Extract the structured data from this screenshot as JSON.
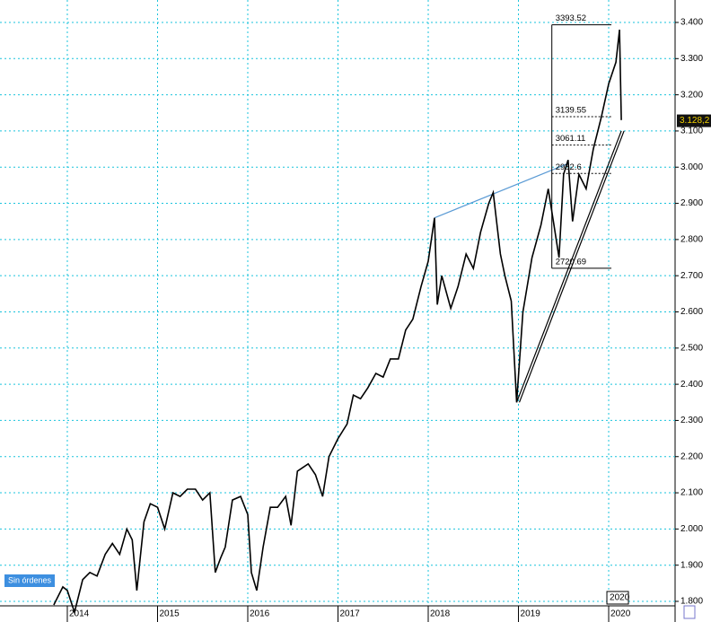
{
  "chart_data": {
    "type": "line",
    "x": [
      2013.85,
      2013.95,
      2014.0,
      2014.08,
      2014.17,
      2014.25,
      2014.33,
      2014.42,
      2014.5,
      2014.58,
      2014.66,
      2014.72,
      2014.77,
      2014.85,
      2014.92,
      2015.0,
      2015.08,
      2015.17,
      2015.25,
      2015.33,
      2015.42,
      2015.5,
      2015.58,
      2015.64,
      2015.7,
      2015.75,
      2015.83,
      2015.92,
      2016.0,
      2016.04,
      2016.1,
      2016.17,
      2016.25,
      2016.33,
      2016.42,
      2016.48,
      2016.55,
      2016.67,
      2016.75,
      2016.83,
      2016.9,
      2017.0,
      2017.1,
      2017.17,
      2017.25,
      2017.33,
      2017.42,
      2017.5,
      2017.58,
      2017.67,
      2017.75,
      2017.83,
      2017.92,
      2018.0,
      2018.07,
      2018.1,
      2018.15,
      2018.25,
      2018.33,
      2018.42,
      2018.5,
      2018.58,
      2018.67,
      2018.72,
      2018.8,
      2018.85,
      2018.92,
      2018.98,
      2019.05,
      2019.15,
      2019.25,
      2019.33,
      2019.4,
      2019.45,
      2019.5,
      2019.55,
      2019.6,
      2019.67,
      2019.75,
      2019.83,
      2019.92,
      2020.0,
      2020.08,
      2020.12,
      2020.14
    ],
    "values": [
      1790,
      1840,
      1830,
      1770,
      1860,
      1880,
      1870,
      1930,
      1960,
      1930,
      2000,
      1970,
      1830,
      2020,
      2070,
      2060,
      2000,
      2100,
      2090,
      2110,
      2110,
      2080,
      2100,
      1880,
      1920,
      1950,
      2080,
      2090,
      2040,
      1880,
      1830,
      1950,
      2060,
      2060,
      2090,
      2010,
      2160,
      2180,
      2150,
      2090,
      2200,
      2250,
      2290,
      2370,
      2360,
      2390,
      2430,
      2420,
      2470,
      2470,
      2550,
      2580,
      2670,
      2740,
      2860,
      2620,
      2700,
      2610,
      2670,
      2760,
      2720,
      2820,
      2900,
      2930,
      2760,
      2700,
      2630,
      2350,
      2600,
      2750,
      2840,
      2940,
      2830,
      2750,
      2980,
      3020,
      2850,
      2980,
      2940,
      3050,
      3140,
      3230,
      3290,
      3380,
      3130
    ],
    "color": "#000000",
    "xlim": [
      2013.254,
      2020.736
    ],
    "ylim": [
      1787.6,
      3462
    ],
    "xticks": [
      2014,
      2015,
      2016,
      2017,
      2018,
      2019,
      2020
    ],
    "yticks": [
      {
        "value": 1800,
        "label": "1.800"
      },
      {
        "value": 1900,
        "label": "1.900"
      },
      {
        "value": 2000,
        "label": "2.000"
      },
      {
        "value": 2100,
        "label": "2.100"
      },
      {
        "value": 2200,
        "label": "2.200"
      },
      {
        "value": 2300,
        "label": "2.300"
      },
      {
        "value": 2400,
        "label": "2.400"
      },
      {
        "value": 2500,
        "label": "2.500"
      },
      {
        "value": 2600,
        "label": "2.600"
      },
      {
        "value": 2700,
        "label": "2.700"
      },
      {
        "value": 2800,
        "label": "2.800"
      },
      {
        "value": 2900,
        "label": "2.900"
      },
      {
        "value": 3000,
        "label": "3.000"
      },
      {
        "value": 3100,
        "label": "3.100"
      },
      {
        "value": 3200,
        "label": "3.200"
      },
      {
        "value": 3300,
        "label": "3.300"
      },
      {
        "value": 3400,
        "label": "3.400"
      }
    ],
    "grid": true,
    "last": {
      "value": 3128.2,
      "label": "3.128,2"
    },
    "levels": [
      3393.52,
      3139.55,
      3061.11,
      2982.6,
      2720.69
    ],
    "levels_x": [
      2019.37,
      2020.03
    ],
    "trendlines": [
      {
        "color": "#5b9bd5",
        "x": [
          2018.07,
          2019.55
        ],
        "y": [
          2860,
          3010
        ]
      },
      {
        "color": "#000000",
        "x": [
          2018.98,
          2020.14
        ],
        "y": [
          2350,
          3100
        ]
      }
    ],
    "status": "Sin órdenes"
  }
}
